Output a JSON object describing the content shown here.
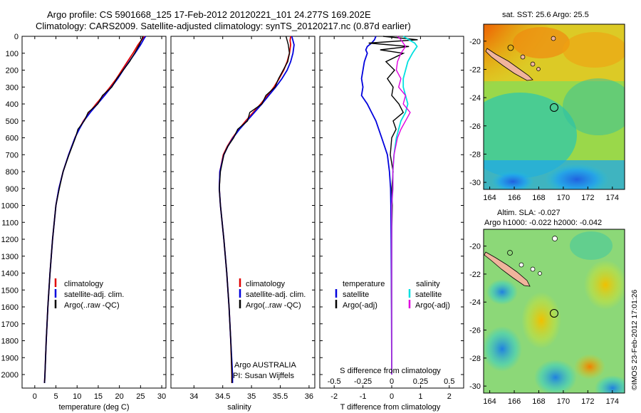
{
  "title_line1": "Argo profile: CS 5901668_125 17-Feb-2012 20120221_101 24.277S 169.202E",
  "title_line2": "Climatology: CARS2009. Satellite-adjusted climatology: synTS_20120217.nc (0.87d earlier)",
  "sst_title": "sat. SST: 25.6  Argo: 25.5",
  "sla_title1": "Altim. SLA: -0.027",
  "sla_title2": "Argo h1000: -0.022 h2000: -0.042",
  "footer_vertical": "©IMOS 23-Feb-2012 17:01:26",
  "colors": {
    "climatology": "#e00000",
    "satellite": "#0000dd",
    "argo": "#000000",
    "sat_salinity": "#00e0e0",
    "argo_salinity": "#e000e0",
    "land": "#f0b49c"
  },
  "legend_temp": [
    "climatology",
    "satellite-adj. clim.",
    "Argo(..raw -QC)"
  ],
  "legend_sal": [
    "climatology",
    "satellite-adj. clim.",
    "Argo(..raw -QC)"
  ],
  "legend_diff": {
    "head_left": "temperature",
    "head_right": "salinity",
    "left": [
      "satellite",
      "Argo(-adj)"
    ],
    "right": [
      "satellite",
      "Argo(-adj)"
    ]
  },
  "sal_note1": "Argo AUSTRALIA",
  "sal_note2": "PI: Susan Wijffels",
  "chart_data": [
    {
      "type": "line",
      "panel": "temperature",
      "xlabel": "temperature (deg C)",
      "ylabel": "",
      "xlim": [
        -3,
        31
      ],
      "ylim": [
        2080,
        0
      ],
      "xticks": [
        0,
        5,
        10,
        15,
        20,
        25,
        30
      ],
      "yticks": [
        0,
        100,
        200,
        300,
        400,
        500,
        600,
        700,
        800,
        900,
        1000,
        1100,
        1200,
        1300,
        1400,
        1500,
        1600,
        1700,
        1800,
        1900,
        2000
      ],
      "depth": [
        0,
        10,
        50,
        100,
        150,
        200,
        250,
        300,
        350,
        400,
        450,
        500,
        550,
        600,
        700,
        800,
        900,
        1000,
        1200,
        1400,
        1600,
        1800,
        2000,
        2050
      ],
      "series": [
        {
          "name": "climatology",
          "values": [
            26.0,
            25.6,
            24.4,
            23.2,
            21.9,
            20.6,
            19.3,
            17.8,
            16.2,
            14.5,
            12.9,
            11.5,
            10.4,
            9.5,
            8.0,
            6.7,
            5.7,
            5.0,
            4.2,
            3.6,
            3.1,
            2.7,
            2.4,
            2.3
          ]
        },
        {
          "name": "satellite-adj. clim.",
          "values": [
            26.2,
            25.9,
            25.0,
            23.7,
            22.3,
            20.9,
            19.6,
            18.1,
            16.5,
            14.8,
            13.1,
            11.6,
            10.5,
            9.5,
            8.0,
            6.7,
            5.7,
            5.0,
            4.2,
            3.6,
            3.1,
            2.7,
            2.4,
            2.3
          ]
        },
        {
          "name": "Argo(..raw -QC)",
          "values": [
            25.5,
            25.4,
            24.7,
            23.6,
            22.4,
            20.9,
            19.4,
            18.2,
            16.0,
            14.9,
            12.6,
            11.7,
            10.2,
            9.6,
            8.1,
            6.7,
            5.8,
            5.0,
            4.2,
            3.6,
            3.1,
            2.7,
            2.4,
            2.3
          ]
        }
      ],
      "legend": "lower-left"
    },
    {
      "type": "line",
      "panel": "salinity",
      "xlabel": "salinity",
      "xlim": [
        33.6,
        36.1
      ],
      "ylim": [
        2080,
        0
      ],
      "xticks": [
        34,
        34.5,
        35,
        35.5,
        36
      ],
      "depth": [
        0,
        25,
        50,
        100,
        150,
        200,
        250,
        300,
        350,
        400,
        450,
        500,
        550,
        600,
        650,
        700,
        800,
        900,
        1000,
        1200,
        1400,
        1600,
        1800,
        2000,
        2050
      ],
      "series": [
        {
          "name": "climatology",
          "values": [
            35.68,
            35.67,
            35.68,
            35.66,
            35.62,
            35.56,
            35.48,
            35.39,
            35.28,
            35.16,
            35.03,
            34.9,
            34.78,
            34.67,
            34.58,
            34.51,
            34.45,
            34.44,
            34.46,
            34.52,
            34.57,
            34.61,
            34.64,
            34.66,
            34.66
          ]
        },
        {
          "name": "satellite-adj. clim.",
          "values": [
            35.7,
            35.72,
            35.74,
            35.72,
            35.68,
            35.62,
            35.53,
            35.42,
            35.3,
            35.18,
            35.05,
            34.92,
            34.79,
            34.68,
            34.59,
            34.52,
            34.45,
            34.44,
            34.46,
            34.52,
            34.57,
            34.61,
            34.64,
            34.67,
            34.67
          ]
        },
        {
          "name": "Argo(..raw -QC)",
          "values": [
            35.6,
            35.62,
            35.64,
            35.66,
            35.63,
            35.55,
            35.47,
            35.41,
            35.25,
            35.18,
            34.97,
            34.93,
            34.76,
            34.69,
            34.59,
            34.52,
            34.46,
            34.44,
            34.46,
            34.52,
            34.57,
            34.61,
            34.64,
            34.66,
            34.66
          ]
        }
      ],
      "legend": "lower-left"
    },
    {
      "type": "line",
      "panel": "difference",
      "xlabel": "T difference from climatology",
      "xlabel_top": "S difference from climatology",
      "xlim": [
        -2.5,
        2.5
      ],
      "ylim": [
        2080,
        0
      ],
      "xticks": [
        -2,
        -1,
        0,
        1,
        2
      ],
      "xticks_top": [
        -0.5,
        -0.25,
        0,
        0.25,
        0.5
      ],
      "depth": [
        0,
        20,
        40,
        60,
        80,
        100,
        150,
        200,
        250,
        300,
        350,
        400,
        450,
        500,
        550,
        600,
        700,
        800,
        900,
        1000,
        1200,
        1500,
        2000
      ],
      "series": [
        {
          "name": "temperature satellite",
          "values": [
            -0.55,
            -0.6,
            -0.7,
            -0.85,
            -0.9,
            -0.85,
            -0.95,
            -1.0,
            -1.05,
            -1.0,
            -1.05,
            -0.85,
            -0.7,
            -0.55,
            -0.45,
            -0.35,
            -0.15,
            -0.08,
            -0.04,
            -0.03,
            -0.02,
            -0.01,
            0.0
          ]
        },
        {
          "name": "temperature Argo(-adj)",
          "values": [
            -0.3,
            0.9,
            -0.8,
            0.6,
            -0.4,
            0.4,
            -0.2,
            0.1,
            -0.15,
            0.05,
            0.0,
            0.25,
            0.4,
            0.05,
            0.15,
            0.0,
            -0.05,
            0.05,
            0.0,
            0.02,
            0.0,
            -0.01,
            0.0
          ]
        },
        {
          "name": "salinity satellite",
          "values": [
            0.1,
            0.15,
            0.2,
            0.22,
            0.2,
            0.18,
            0.14,
            0.12,
            0.1,
            0.1,
            0.12,
            0.14,
            0.12,
            0.08,
            0.06,
            0.04,
            0.02,
            0.01,
            0.01,
            0.0,
            0.0,
            0.0,
            0.0
          ]
        },
        {
          "name": "salinity Argo(-adj)",
          "values": [
            0.05,
            0.08,
            0.1,
            0.12,
            0.1,
            0.08,
            0.05,
            0.04,
            0.08,
            0.06,
            0.12,
            0.1,
            0.16,
            0.12,
            0.08,
            0.05,
            0.02,
            0.01,
            0.01,
            0.0,
            0.0,
            0.0,
            0.0
          ]
        }
      ],
      "legend": "lower-center"
    },
    {
      "type": "heatmap",
      "panel": "sat. SST map",
      "xlim": [
        163.5,
        175
      ],
      "ylim": [
        -30.5,
        -18.8
      ],
      "xticks": [
        164,
        166,
        168,
        170,
        172,
        174
      ],
      "yticks": [
        -20,
        -22,
        -24,
        -26,
        -28,
        -30
      ],
      "argo_position": [
        169.202,
        -24.277
      ]
    },
    {
      "type": "heatmap",
      "panel": "altimetry SLA map",
      "xlim": [
        163.5,
        175
      ],
      "ylim": [
        -30.5,
        -18.8
      ],
      "xticks": [
        164,
        166,
        168,
        170,
        172,
        174
      ],
      "yticks": [
        -20,
        -22,
        -24,
        -26,
        -28,
        -30
      ],
      "argo_position": [
        169.202,
        -24.277
      ]
    }
  ]
}
